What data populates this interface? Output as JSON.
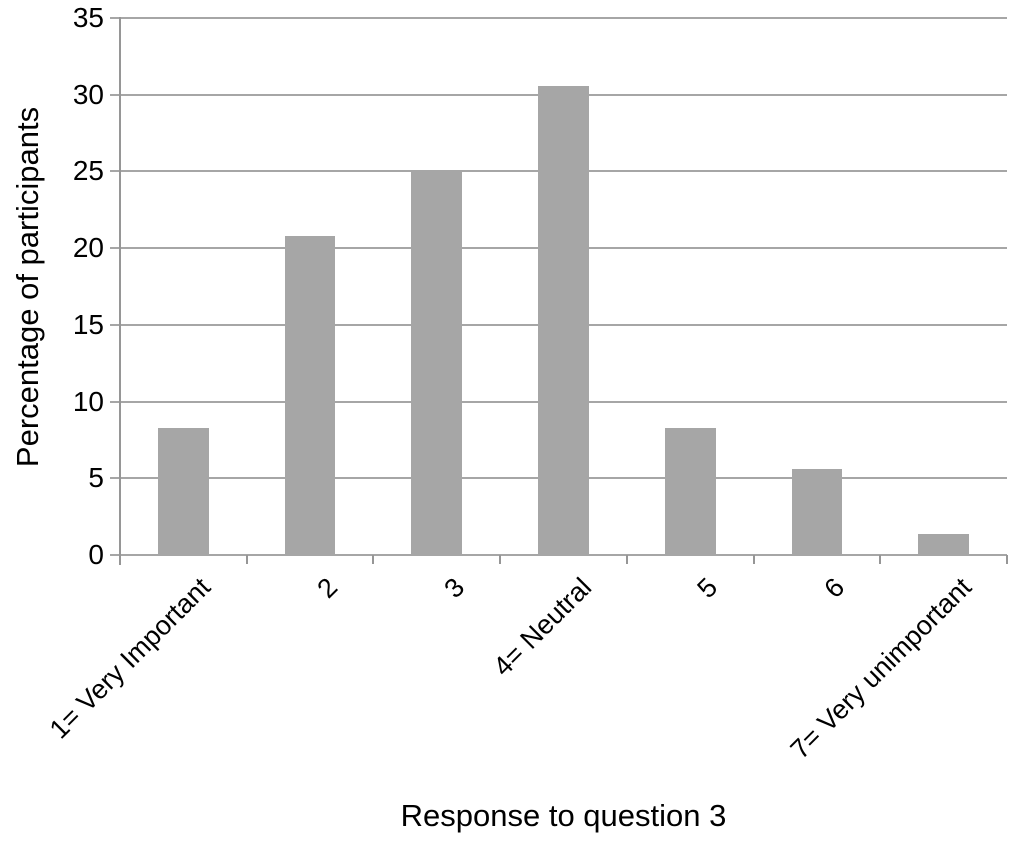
{
  "chart_data": {
    "type": "bar",
    "categories": [
      "1= Very Important",
      "2",
      "3",
      "4= Neutral",
      "5",
      "6",
      "7= Very unimportant"
    ],
    "values": [
      8.3,
      20.8,
      25,
      30.6,
      8.3,
      5.6,
      1.4
    ],
    "title": "",
    "xlabel": "Response to question 3",
    "ylabel": "Percentage of participants",
    "ylim": [
      0,
      35
    ],
    "ytick_step": 5,
    "yticks": [
      0,
      5,
      10,
      15,
      20,
      25,
      30,
      35
    ],
    "grid": "horizontal",
    "legend_position": "none",
    "bar_color": "#a6a6a6",
    "gridline_color": "#a6a6a6",
    "axis_color": "#969696",
    "text_color": "#000000",
    "background_color": "#ffffff"
  }
}
